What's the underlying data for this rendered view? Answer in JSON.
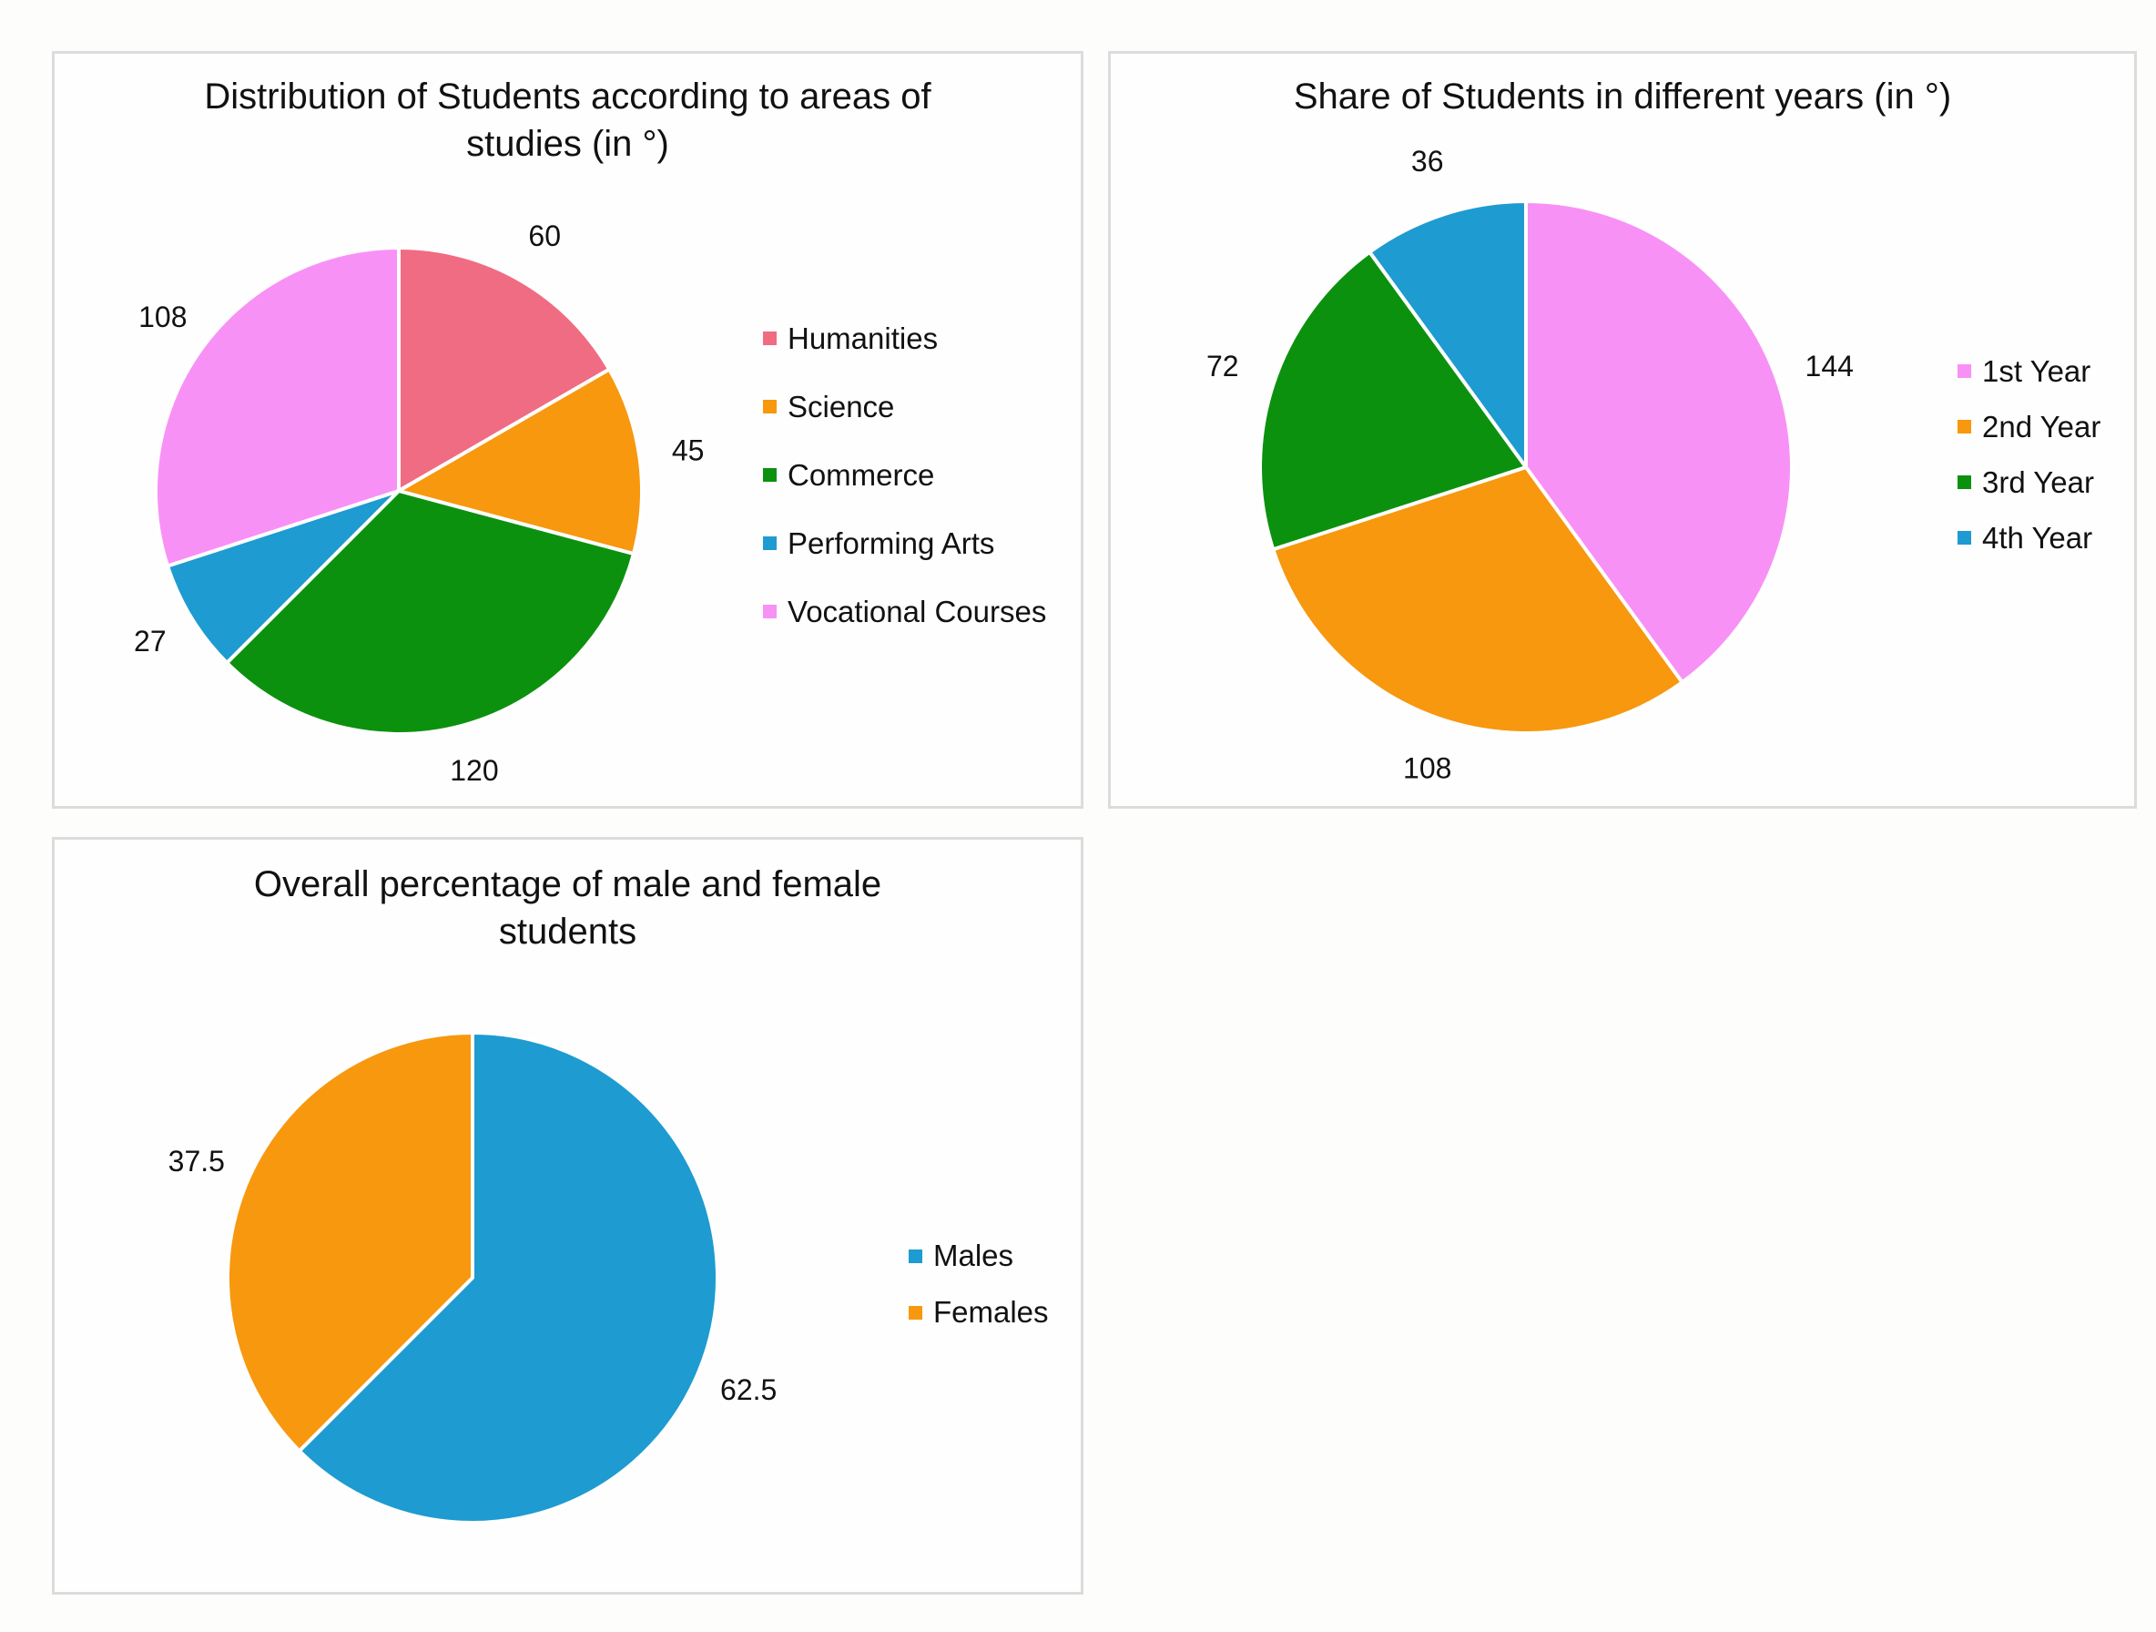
{
  "chart_data": [
    {
      "type": "pie",
      "title": "Distribution of Students according to areas of studies (in °)",
      "title_lines": [
        "Distribution of Students according to areas of",
        "studies (in °)"
      ],
      "unit": "degrees",
      "legend_position": "right",
      "slices": [
        {
          "label": "Humanities",
          "value": 60,
          "color": "#f06c82"
        },
        {
          "label": "Science",
          "value": 45,
          "color": "#f7980f"
        },
        {
          "label": "Commerce",
          "value": 120,
          "color": "#0c910f"
        },
        {
          "label": "Performing Arts",
          "value": 27,
          "color": "#1e9bd0"
        },
        {
          "label": "Vocational Courses",
          "value": 108,
          "color": "#f891f6"
        }
      ]
    },
    {
      "type": "pie",
      "title": "Share of Students in different years (in °)",
      "title_lines": [
        "Share of Students in different years (in °)"
      ],
      "unit": "degrees",
      "legend_position": "right",
      "slices": [
        {
          "label": "1st Year",
          "value": 144,
          "color": "#f891f6"
        },
        {
          "label": "2nd Year",
          "value": 108,
          "color": "#f7980f"
        },
        {
          "label": "3rd Year",
          "value": 72,
          "color": "#0c910f"
        },
        {
          "label": "4th Year",
          "value": 36,
          "color": "#1e9bd0"
        }
      ]
    },
    {
      "type": "pie",
      "title": "Overall percentage of male and female students",
      "title_lines": [
        "Overall percentage of male and female",
        "students"
      ],
      "unit": "percent",
      "legend_position": "right",
      "slices": [
        {
          "label": "Males",
          "value": 62.5,
          "color": "#1e9bd0"
        },
        {
          "label": "Females",
          "value": 37.5,
          "color": "#f7980f"
        }
      ]
    }
  ]
}
